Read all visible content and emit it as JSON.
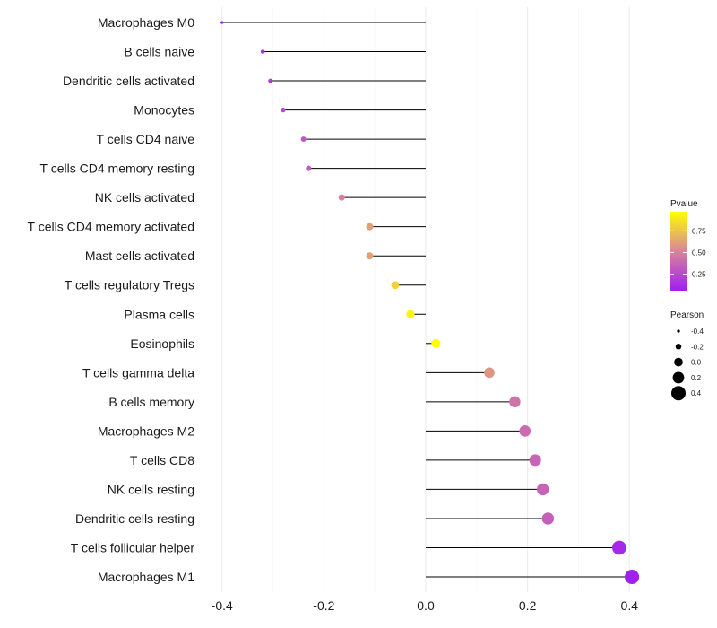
{
  "chart_data": {
    "type": "lollipop",
    "title": "",
    "xlabel": "",
    "ylabel": "",
    "xlim": [
      -0.44,
      0.44
    ],
    "xticks": [
      -0.4,
      -0.2,
      0.0,
      0.2,
      0.4
    ],
    "xtick_labels": [
      "-0.4",
      "-0.2",
      "0.0",
      "0.2",
      "0.4"
    ],
    "grid": true,
    "points": [
      {
        "label": "Macrophages M0",
        "pearson": -0.4,
        "pvalue": 0.08
      },
      {
        "label": "B cells naive",
        "pearson": -0.32,
        "pvalue": 0.15
      },
      {
        "label": "Dendritic cells activated",
        "pearson": -0.305,
        "pvalue": 0.17
      },
      {
        "label": "Monocytes",
        "pearson": -0.28,
        "pvalue": 0.24
      },
      {
        "label": "T cells CD4 naive",
        "pearson": -0.24,
        "pvalue": 0.31
      },
      {
        "label": "T cells CD4 memory resting",
        "pearson": -0.23,
        "pvalue": 0.33
      },
      {
        "label": "NK cells activated",
        "pearson": -0.165,
        "pvalue": 0.5
      },
      {
        "label": "T cells CD4 memory activated",
        "pearson": -0.11,
        "pvalue": 0.62
      },
      {
        "label": "Mast cells activated",
        "pearson": -0.11,
        "pvalue": 0.62
      },
      {
        "label": "T cells regulatory  Tregs ",
        "pearson": -0.06,
        "pvalue": 0.8
      },
      {
        "label": "Plasma cells",
        "pearson": -0.03,
        "pvalue": 0.93
      },
      {
        "label": "Eosinophils",
        "pearson": 0.02,
        "pvalue": 0.97
      },
      {
        "label": "T cells gamma delta",
        "pearson": 0.125,
        "pvalue": 0.58
      },
      {
        "label": "B cells memory",
        "pearson": 0.175,
        "pvalue": 0.44
      },
      {
        "label": "Macrophages M2",
        "pearson": 0.195,
        "pvalue": 0.4
      },
      {
        "label": "T cells CD8",
        "pearson": 0.215,
        "pvalue": 0.37
      },
      {
        "label": "NK cells resting",
        "pearson": 0.23,
        "pvalue": 0.36
      },
      {
        "label": "Dendritic cells resting",
        "pearson": 0.24,
        "pvalue": 0.35
      },
      {
        "label": "T cells follicular helper",
        "pearson": 0.38,
        "pvalue": 0.1
      },
      {
        "label": "Macrophages M1",
        "pearson": 0.405,
        "pvalue": 0.06
      }
    ],
    "legend": {
      "placement": "right",
      "color": {
        "title": "Pvalue",
        "ticks": [
          0.75,
          0.5,
          0.25
        ],
        "tick_labels": [
          "0.75",
          "0.50",
          "0.25"
        ],
        "range": [
          0.06,
          0.97
        ],
        "low_color": "#a020f0",
        "mid_color": "#d9849a",
        "high_color": "#ffff00"
      },
      "size": {
        "title": "Pearson",
        "values": [
          -0.4,
          -0.2,
          0.0,
          0.2,
          0.4
        ],
        "labels": [
          "-0.4",
          "-0.2",
          "0.0",
          "0.2",
          "0.4"
        ]
      }
    }
  }
}
